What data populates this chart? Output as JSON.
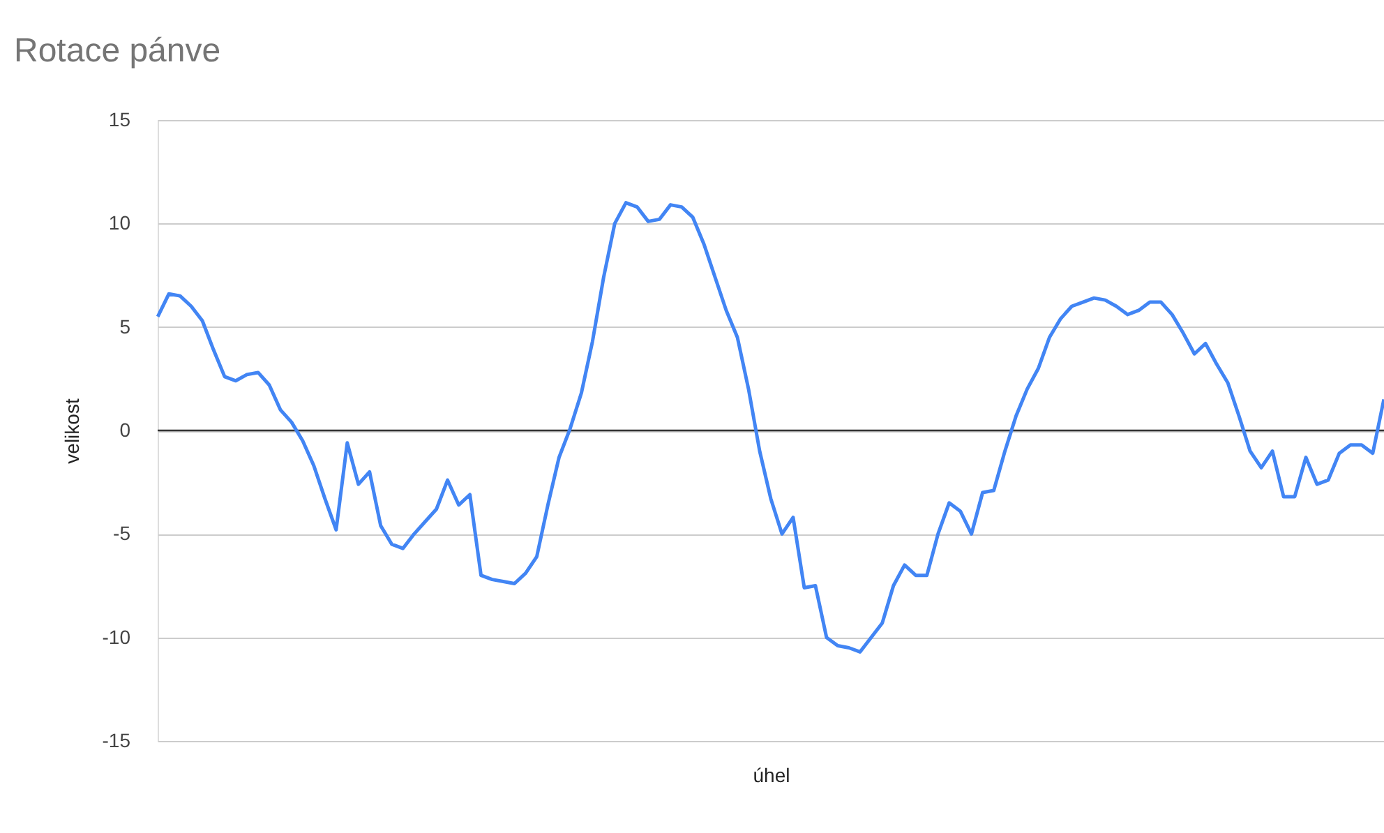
{
  "chart_data": {
    "type": "line",
    "title": "Rotace pánve",
    "xlabel": "úhel",
    "ylabel": "velikost",
    "categories": [
      null,
      null,
      null,
      null,
      null,
      null,
      null,
      null,
      null,
      null,
      null,
      null,
      null,
      null,
      null,
      null,
      null,
      null,
      null,
      null,
      null,
      null,
      null,
      null,
      null,
      null,
      null,
      null,
      null,
      null,
      null,
      null,
      null,
      null,
      null,
      null,
      null,
      null,
      null,
      null,
      null,
      null,
      null,
      null,
      null,
      null,
      null,
      null,
      null,
      null,
      null,
      null,
      null,
      null,
      null,
      null,
      null,
      null,
      null,
      null,
      null,
      null,
      null,
      null,
      null,
      null,
      null,
      null,
      null,
      null,
      null,
      null,
      null,
      null,
      null,
      null,
      null,
      null,
      null,
      null,
      null,
      null,
      null,
      null,
      null,
      null,
      null,
      null,
      null,
      null,
      null,
      null,
      null,
      null,
      null,
      null,
      null,
      null,
      null,
      null,
      null,
      null,
      null,
      null,
      null,
      null,
      null,
      null,
      null,
      null,
      null
    ],
    "series": [
      {
        "color": "#4285f4",
        "values": [
          5.5,
          6.6,
          6.5,
          6.0,
          5.3,
          3.9,
          2.6,
          2.4,
          2.7,
          2.8,
          2.2,
          1.0,
          0.4,
          -0.5,
          -1.7,
          -3.3,
          -4.8,
          -0.6,
          -2.6,
          -2.0,
          -4.6,
          -5.5,
          -5.7,
          -5.0,
          -4.4,
          -3.8,
          -2.4,
          -3.6,
          -3.1,
          -7.0,
          -7.2,
          -7.3,
          -7.4,
          -6.9,
          -6.1,
          -3.6,
          -1.3,
          0.1,
          1.8,
          4.3,
          7.4,
          10.0,
          11.0,
          10.8,
          10.1,
          10.2,
          10.9,
          10.8,
          10.3,
          9.0,
          7.4,
          5.8,
          4.5,
          2.0,
          -1.0,
          -3.3,
          -5.0,
          -4.2,
          -7.6,
          -7.5,
          -10.0,
          -10.4,
          -10.5,
          -10.7,
          -10.0,
          -9.3,
          -7.5,
          -6.5,
          -7.0,
          -7.0,
          -5.0,
          -3.5,
          -3.9,
          -5.0,
          -3.0,
          -2.9,
          -1.0,
          0.7,
          2.0,
          3.0,
          4.5,
          5.4,
          6.0,
          6.2,
          6.4,
          6.3,
          6.0,
          5.6,
          5.8,
          6.2,
          6.2,
          5.6,
          4.7,
          3.7,
          4.2,
          3.2,
          2.3,
          0.7,
          -1.0,
          -1.8,
          -1.0,
          -3.2,
          -3.2,
          -1.3,
          -2.6,
          -2.4,
          -1.1,
          -0.7,
          -0.7,
          -1.1,
          1.5
        ]
      }
    ],
    "ylim": [
      -15,
      15
    ],
    "yticks": [
      -15,
      -10,
      -5,
      0,
      5,
      10,
      15
    ],
    "grid": "y",
    "tick_labels": "y",
    "marker": "none",
    "line_style": "solid",
    "ref_lines": [
      {
        "axis": "y",
        "value": 0,
        "color": "#333333"
      }
    ]
  }
}
